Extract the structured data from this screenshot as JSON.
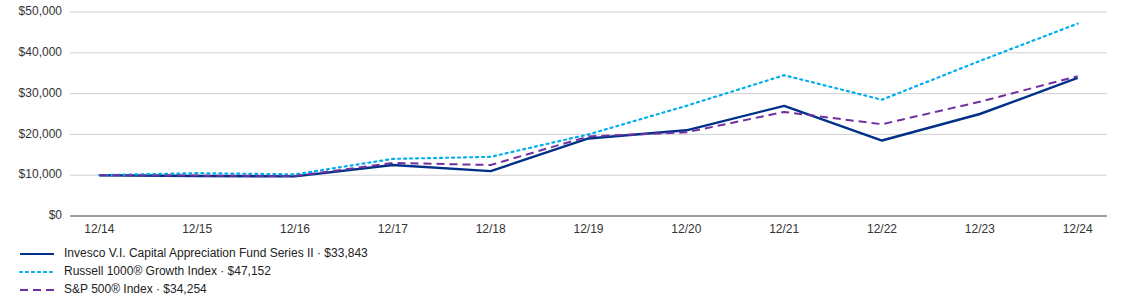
{
  "chart_data": {
    "type": "line",
    "categories": [
      "12/14",
      "12/15",
      "12/16",
      "12/17",
      "12/18",
      "12/19",
      "12/20",
      "12/21",
      "12/22",
      "12/23",
      "12/24"
    ],
    "series": [
      {
        "name": "Invesco V.I. Capital Appreciation Fund Series II · $33,843",
        "color": "#003087",
        "line_style": "solid",
        "values": [
          10000,
          9800,
          9700,
          12500,
          11000,
          19000,
          21000,
          27000,
          18500,
          25000,
          33843
        ]
      },
      {
        "name": "Russell 1000® Growth Index · $47,152",
        "color": "#00AEEF",
        "line_style": "dotted",
        "values": [
          10000,
          10500,
          10200,
          14000,
          14500,
          20000,
          27000,
          34500,
          28500,
          38000,
          47152
        ]
      },
      {
        "name": "S&P 500® Index · $34,254",
        "color": "#7030A0",
        "line_style": "dashed",
        "values": [
          10000,
          9900,
          9800,
          13000,
          12500,
          19500,
          20500,
          25500,
          22500,
          28000,
          34254
        ]
      }
    ],
    "ylim": [
      0,
      50000
    ],
    "yticks": [
      {
        "value": 0,
        "label": "$0"
      },
      {
        "value": 10000,
        "label": "$10,000"
      },
      {
        "value": 20000,
        "label": "$20,000"
      },
      {
        "value": 30000,
        "label": "$30,000"
      },
      {
        "value": 40000,
        "label": "$40,000"
      },
      {
        "value": 50000,
        "label": "$50,000"
      }
    ],
    "grid": true,
    "legend": "bottom"
  }
}
